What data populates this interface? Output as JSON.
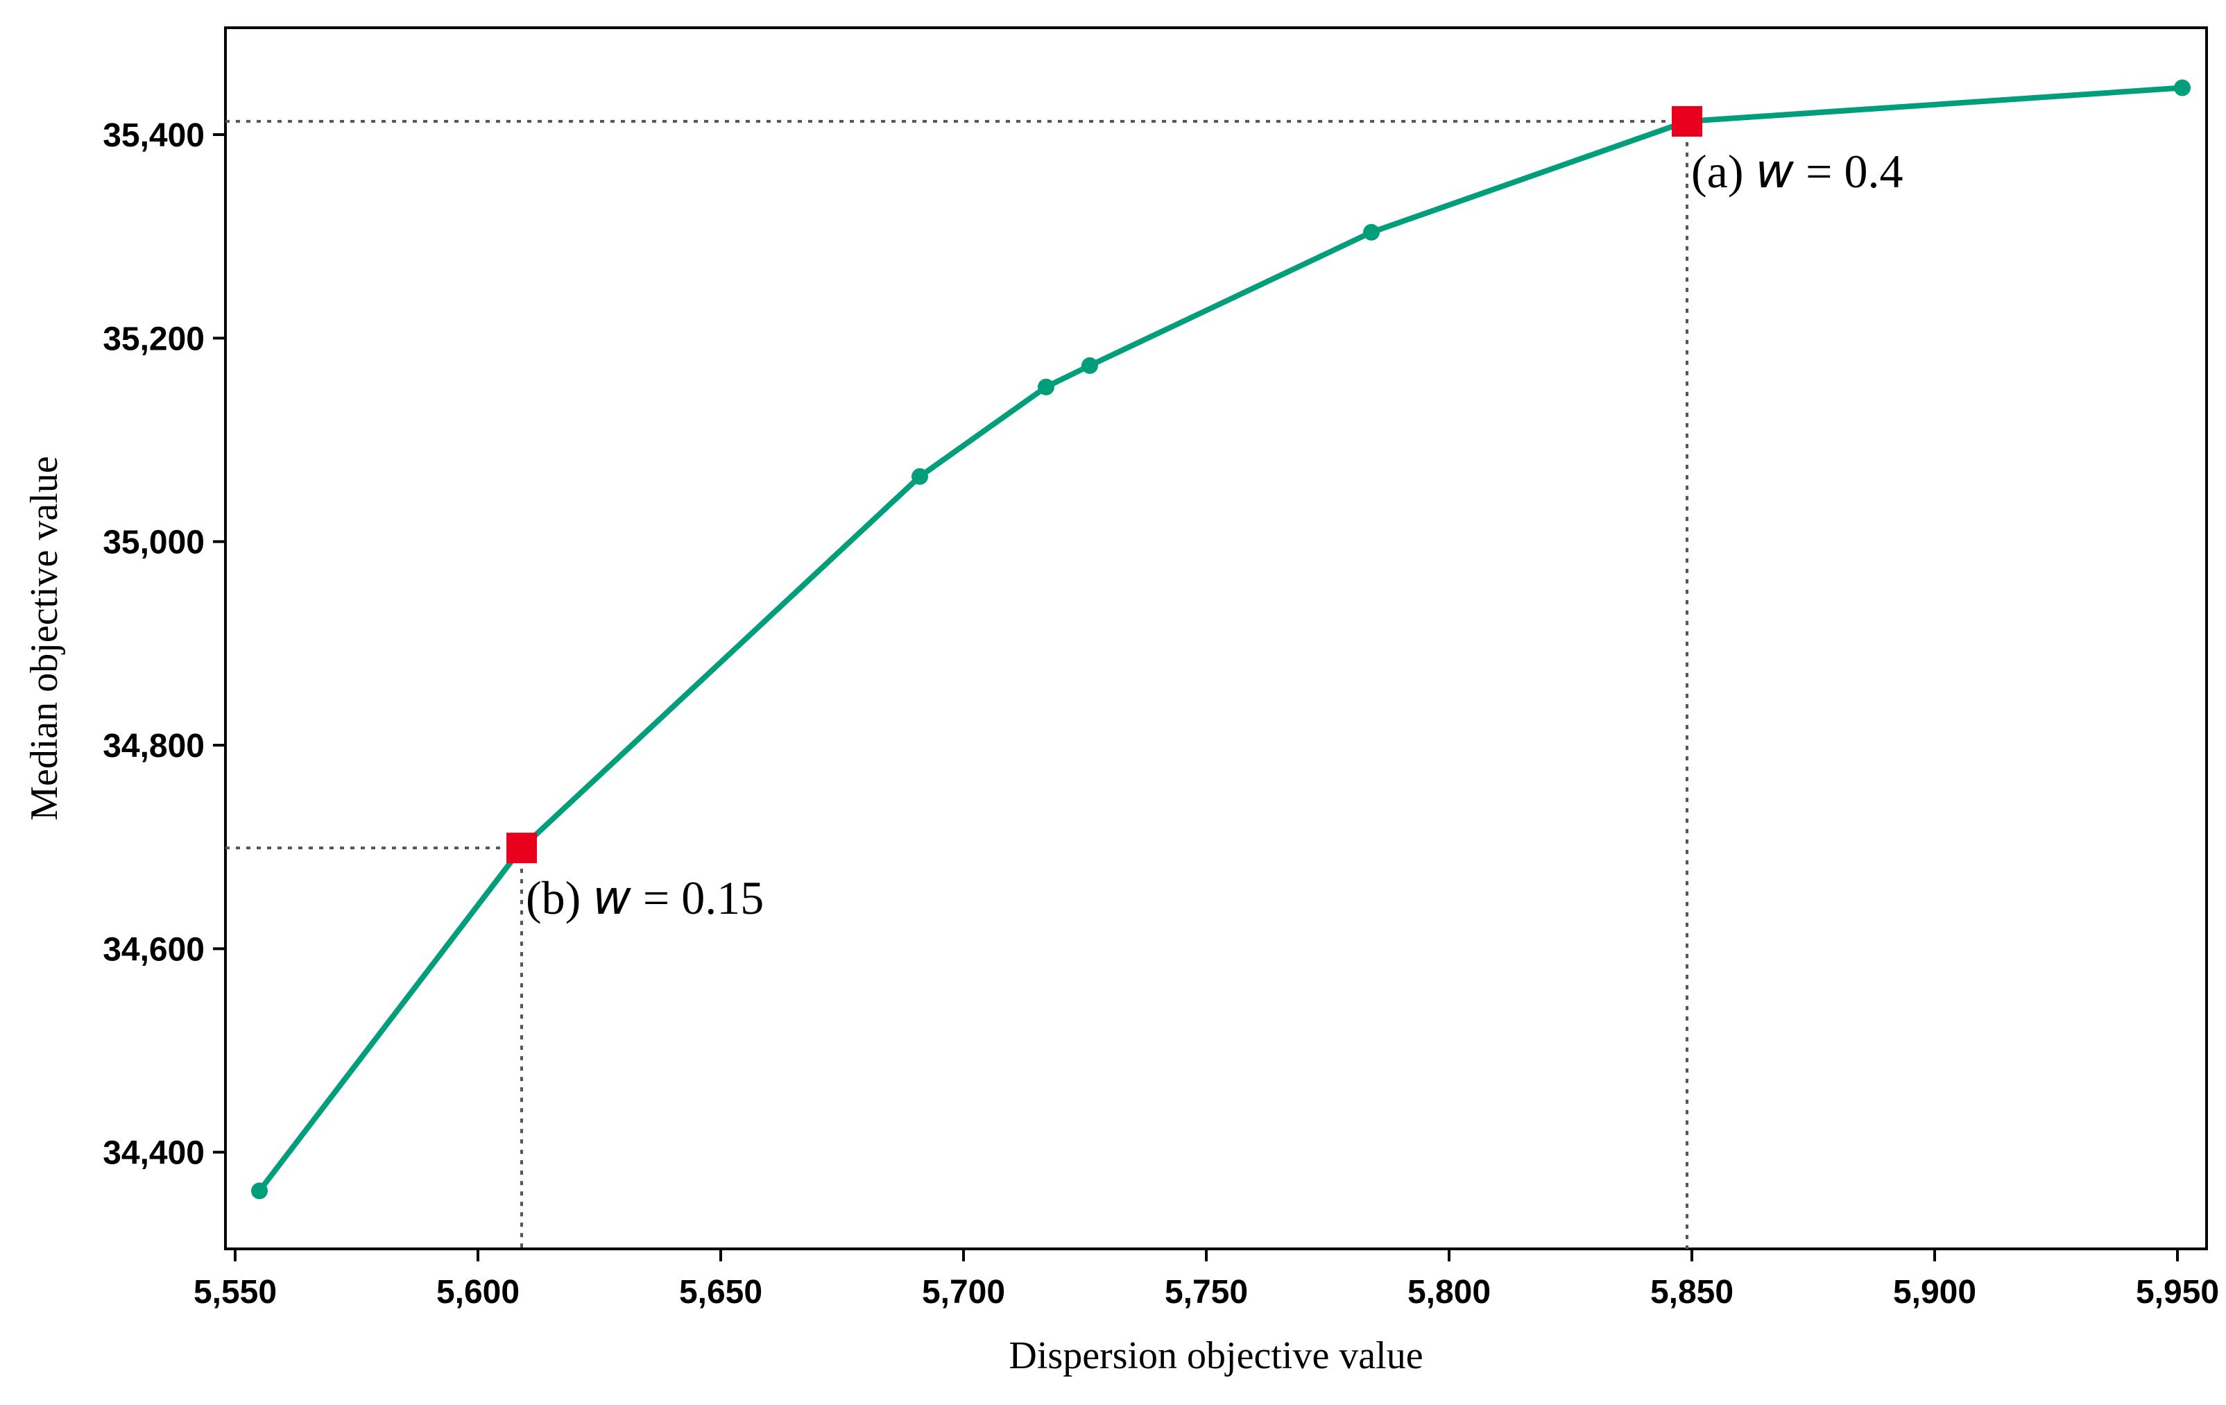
{
  "chart_data": {
    "type": "line",
    "title": "",
    "xlabel": "Dispersion objective value",
    "ylabel": "Median objective value",
    "xlim": [
      5548,
      5956
    ],
    "ylim": [
      34305,
      35505
    ],
    "x_ticks": [
      5550,
      5600,
      5650,
      5700,
      5750,
      5800,
      5850,
      5900,
      5950
    ],
    "x_tick_labels": [
      "5,550",
      "5,600",
      "5,650",
      "5,700",
      "5,750",
      "5,800",
      "5,850",
      "5,900",
      "5,950"
    ],
    "y_ticks": [
      34400,
      34600,
      34800,
      35000,
      35200,
      35400
    ],
    "y_tick_labels": [
      "34,400",
      "34,600",
      "34,800",
      "35,000",
      "35,200",
      "35,400"
    ],
    "grid": false,
    "series": [
      {
        "color": "#009E7A",
        "x": [
          5555,
          5609,
          5691,
          5717,
          5726,
          5784,
          5849,
          5951
        ],
        "y": [
          34362,
          34699,
          35064,
          35152,
          35173,
          35304,
          35413,
          35446
        ]
      }
    ],
    "highlights": [
      {
        "label_prefix": "(b) ",
        "label_var": "w",
        "label_suffix": " = 0.15",
        "x": 5609,
        "y": 34699,
        "color": "#E8001C"
      },
      {
        "label_prefix": "(a) ",
        "label_var": "w",
        "label_suffix": " = 0.4",
        "x": 5849,
        "y": 35413,
        "color": "#E8001C"
      }
    ]
  }
}
